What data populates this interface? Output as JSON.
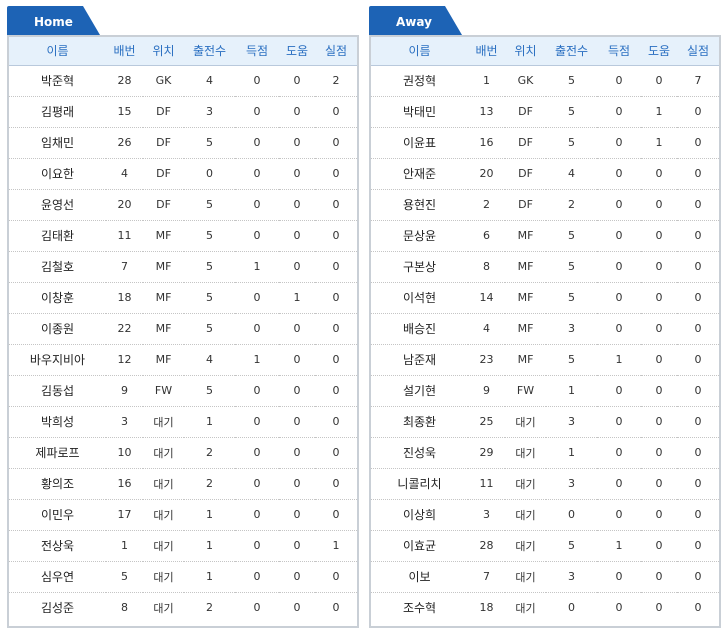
{
  "colors": {
    "tab": "#1d63b5",
    "header_text": "#2a6fc1",
    "header_bg": "#e6f1fb",
    "border": "#c9cfd6"
  },
  "columns": [
    "이름",
    "배번",
    "위치",
    "출전수",
    "득점",
    "도움",
    "실점"
  ],
  "home": {
    "title": "Home",
    "players": [
      {
        "name": "박준혁",
        "no": "28",
        "pos": "GK",
        "apps": "4",
        "goals": "0",
        "assists": "0",
        "conceded": "2"
      },
      {
        "name": "김평래",
        "no": "15",
        "pos": "DF",
        "apps": "3",
        "goals": "0",
        "assists": "0",
        "conceded": "0"
      },
      {
        "name": "임채민",
        "no": "26",
        "pos": "DF",
        "apps": "5",
        "goals": "0",
        "assists": "0",
        "conceded": "0"
      },
      {
        "name": "이요한",
        "no": "4",
        "pos": "DF",
        "apps": "0",
        "goals": "0",
        "assists": "0",
        "conceded": "0"
      },
      {
        "name": "윤영선",
        "no": "20",
        "pos": "DF",
        "apps": "5",
        "goals": "0",
        "assists": "0",
        "conceded": "0"
      },
      {
        "name": "김태환",
        "no": "11",
        "pos": "MF",
        "apps": "5",
        "goals": "0",
        "assists": "0",
        "conceded": "0"
      },
      {
        "name": "김철호",
        "no": "7",
        "pos": "MF",
        "apps": "5",
        "goals": "1",
        "assists": "0",
        "conceded": "0"
      },
      {
        "name": "이창훈",
        "no": "18",
        "pos": "MF",
        "apps": "5",
        "goals": "0",
        "assists": "1",
        "conceded": "0"
      },
      {
        "name": "이종원",
        "no": "22",
        "pos": "MF",
        "apps": "5",
        "goals": "0",
        "assists": "0",
        "conceded": "0"
      },
      {
        "name": "바우지비아",
        "no": "12",
        "pos": "MF",
        "apps": "4",
        "goals": "1",
        "assists": "0",
        "conceded": "0"
      },
      {
        "name": "김동섭",
        "no": "9",
        "pos": "FW",
        "apps": "5",
        "goals": "0",
        "assists": "0",
        "conceded": "0"
      },
      {
        "name": "박희성",
        "no": "3",
        "pos": "대기",
        "apps": "1",
        "goals": "0",
        "assists": "0",
        "conceded": "0"
      },
      {
        "name": "제파로프",
        "no": "10",
        "pos": "대기",
        "apps": "2",
        "goals": "0",
        "assists": "0",
        "conceded": "0"
      },
      {
        "name": "황의조",
        "no": "16",
        "pos": "대기",
        "apps": "2",
        "goals": "0",
        "assists": "0",
        "conceded": "0"
      },
      {
        "name": "이민우",
        "no": "17",
        "pos": "대기",
        "apps": "1",
        "goals": "0",
        "assists": "0",
        "conceded": "0"
      },
      {
        "name": "전상욱",
        "no": "1",
        "pos": "대기",
        "apps": "1",
        "goals": "0",
        "assists": "0",
        "conceded": "1"
      },
      {
        "name": "심우연",
        "no": "5",
        "pos": "대기",
        "apps": "1",
        "goals": "0",
        "assists": "0",
        "conceded": "0"
      },
      {
        "name": "김성준",
        "no": "8",
        "pos": "대기",
        "apps": "2",
        "goals": "0",
        "assists": "0",
        "conceded": "0"
      }
    ]
  },
  "away": {
    "title": "Away",
    "players": [
      {
        "name": "권정혁",
        "no": "1",
        "pos": "GK",
        "apps": "5",
        "goals": "0",
        "assists": "0",
        "conceded": "7"
      },
      {
        "name": "박태민",
        "no": "13",
        "pos": "DF",
        "apps": "5",
        "goals": "0",
        "assists": "1",
        "conceded": "0"
      },
      {
        "name": "이윤표",
        "no": "16",
        "pos": "DF",
        "apps": "5",
        "goals": "0",
        "assists": "1",
        "conceded": "0"
      },
      {
        "name": "안재준",
        "no": "20",
        "pos": "DF",
        "apps": "4",
        "goals": "0",
        "assists": "0",
        "conceded": "0"
      },
      {
        "name": "용현진",
        "no": "2",
        "pos": "DF",
        "apps": "2",
        "goals": "0",
        "assists": "0",
        "conceded": "0"
      },
      {
        "name": "문상윤",
        "no": "6",
        "pos": "MF",
        "apps": "5",
        "goals": "0",
        "assists": "0",
        "conceded": "0"
      },
      {
        "name": "구본상",
        "no": "8",
        "pos": "MF",
        "apps": "5",
        "goals": "0",
        "assists": "0",
        "conceded": "0"
      },
      {
        "name": "이석현",
        "no": "14",
        "pos": "MF",
        "apps": "5",
        "goals": "0",
        "assists": "0",
        "conceded": "0"
      },
      {
        "name": "배승진",
        "no": "4",
        "pos": "MF",
        "apps": "3",
        "goals": "0",
        "assists": "0",
        "conceded": "0"
      },
      {
        "name": "남준재",
        "no": "23",
        "pos": "MF",
        "apps": "5",
        "goals": "1",
        "assists": "0",
        "conceded": "0"
      },
      {
        "name": "설기현",
        "no": "9",
        "pos": "FW",
        "apps": "1",
        "goals": "0",
        "assists": "0",
        "conceded": "0"
      },
      {
        "name": "최종환",
        "no": "25",
        "pos": "대기",
        "apps": "3",
        "goals": "0",
        "assists": "0",
        "conceded": "0"
      },
      {
        "name": "진성욱",
        "no": "29",
        "pos": "대기",
        "apps": "1",
        "goals": "0",
        "assists": "0",
        "conceded": "0"
      },
      {
        "name": "니콜리치",
        "no": "11",
        "pos": "대기",
        "apps": "3",
        "goals": "0",
        "assists": "0",
        "conceded": "0"
      },
      {
        "name": "이상희",
        "no": "3",
        "pos": "대기",
        "apps": "0",
        "goals": "0",
        "assists": "0",
        "conceded": "0"
      },
      {
        "name": "이효균",
        "no": "28",
        "pos": "대기",
        "apps": "5",
        "goals": "1",
        "assists": "0",
        "conceded": "0"
      },
      {
        "name": "이보",
        "no": "7",
        "pos": "대기",
        "apps": "3",
        "goals": "0",
        "assists": "0",
        "conceded": "0"
      },
      {
        "name": "조수혁",
        "no": "18",
        "pos": "대기",
        "apps": "0",
        "goals": "0",
        "assists": "0",
        "conceded": "0"
      }
    ]
  }
}
